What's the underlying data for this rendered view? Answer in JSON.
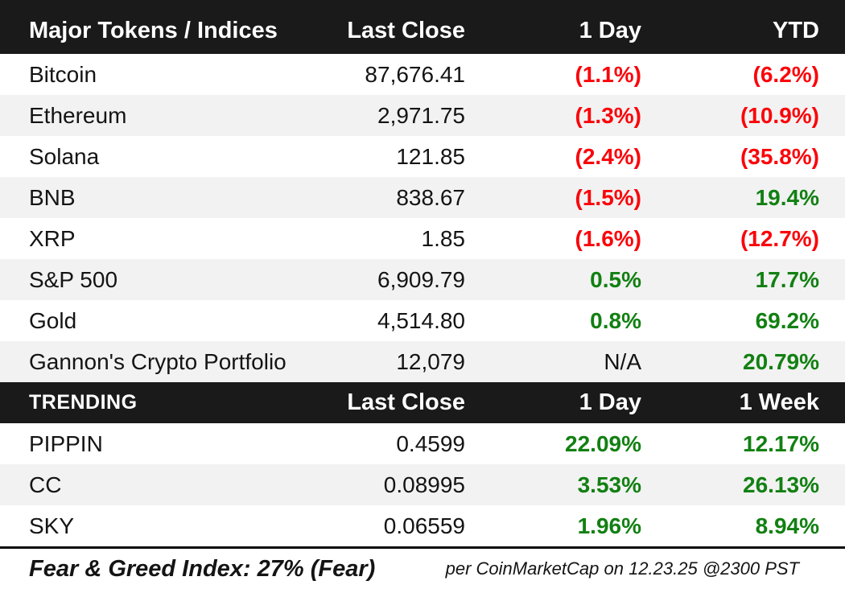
{
  "chart_data": [
    {
      "type": "table",
      "title": "Major Tokens / Indices",
      "columns": [
        "Major Tokens / Indices",
        "Last Close",
        "1 Day",
        "YTD"
      ],
      "rows": [
        {
          "name": "Bitcoin",
          "last_close": "87,676.41",
          "day": "(1.1%)",
          "day_cls": "neg",
          "ytd": "(6.2%)",
          "ytd_cls": "neg"
        },
        {
          "name": "Ethereum",
          "last_close": "2,971.75",
          "day": "(1.3%)",
          "day_cls": "neg",
          "ytd": "(10.9%)",
          "ytd_cls": "neg"
        },
        {
          "name": "Solana",
          "last_close": "121.85",
          "day": "(2.4%)",
          "day_cls": "neg",
          "ytd": "(35.8%)",
          "ytd_cls": "neg"
        },
        {
          "name": "BNB",
          "last_close": "838.67",
          "day": "(1.5%)",
          "day_cls": "neg",
          "ytd": "19.4%",
          "ytd_cls": "pos"
        },
        {
          "name": "XRP",
          "last_close": "1.85",
          "day": "(1.6%)",
          "day_cls": "neg",
          "ytd": "(12.7%)",
          "ytd_cls": "neg"
        },
        {
          "name": "S&P 500",
          "last_close": "6,909.79",
          "day": "0.5%",
          "day_cls": "pos",
          "ytd": "17.7%",
          "ytd_cls": "pos"
        },
        {
          "name": "Gold",
          "last_close": "4,514.80",
          "day": "0.8%",
          "day_cls": "pos",
          "ytd": "69.2%",
          "ytd_cls": "pos"
        },
        {
          "name": "Gannon's Crypto Portfolio",
          "last_close": "12,079",
          "day": "N/A",
          "day_cls": "neutral",
          "ytd": "20.79%",
          "ytd_cls": "pos"
        }
      ]
    },
    {
      "type": "table",
      "title": "TRENDING",
      "columns": [
        "TRENDING",
        "Last Close",
        "1 Day",
        "1 Week"
      ],
      "rows": [
        {
          "name": "PIPPIN",
          "last_close": "0.4599",
          "day": "22.09%",
          "day_cls": "pos",
          "week": "12.17%",
          "week_cls": "pos"
        },
        {
          "name": "CC",
          "last_close": "0.08995",
          "day": "3.53%",
          "day_cls": "pos",
          "week": "26.13%",
          "week_cls": "pos"
        },
        {
          "name": "SKY",
          "last_close": "0.06559",
          "day": "1.96%",
          "day_cls": "pos",
          "week": "8.94%",
          "week_cls": "pos"
        }
      ]
    }
  ],
  "footer": {
    "fear_greed": "Fear & Greed Index: 27% (Fear)",
    "attribution": "per CoinMarketCap on 12.23.25 @2300 PST"
  },
  "colors": {
    "negative": "#fa050a",
    "positive": "#128012",
    "header_bg": "#1a1a1a",
    "stripe": "#f2f2f2",
    "text": "#141414"
  }
}
